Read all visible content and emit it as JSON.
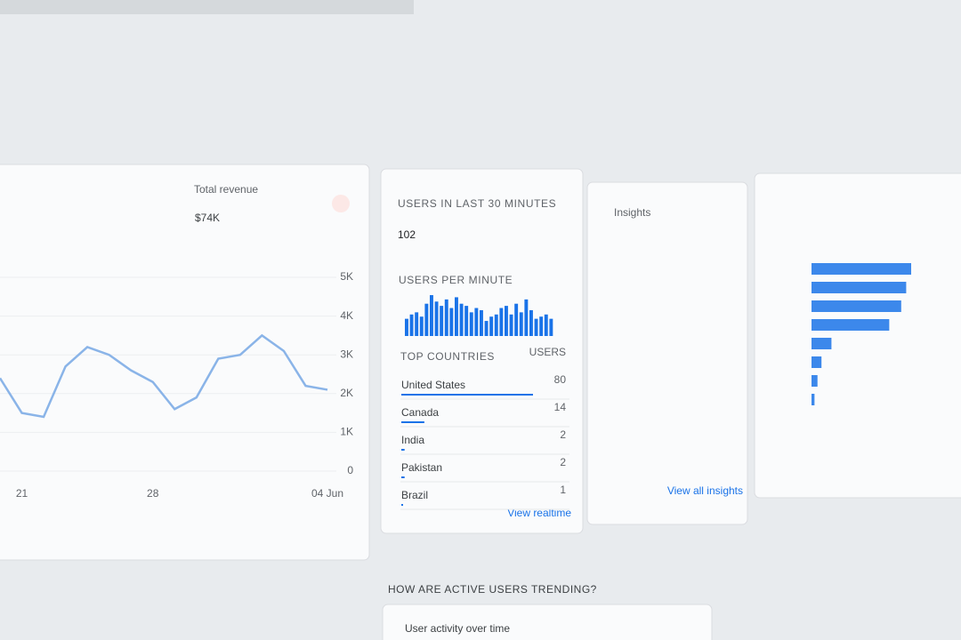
{
  "revenue_card": {
    "label": "Total revenue",
    "value": "$74K"
  },
  "realtime_card": {
    "title": "USERS IN LAST 30 MINUTES",
    "value": "102",
    "per_minute_label": "USERS PER MINUTE",
    "countries_label": "TOP COUNTRIES",
    "users_label": "USERS",
    "countries": [
      {
        "name": "United States",
        "users": 80
      },
      {
        "name": "Canada",
        "users": 14
      },
      {
        "name": "India",
        "users": 2
      },
      {
        "name": "Pakistan",
        "users": 2
      },
      {
        "name": "Brazil",
        "users": 1
      }
    ],
    "link": "View realtime"
  },
  "insights_card": {
    "title": "Insights",
    "link": "View all insights"
  },
  "section": {
    "title": "HOW ARE ACTIVE USERS TRENDING?",
    "card_title": "User activity over time"
  },
  "chart_data": [
    {
      "type": "line",
      "categories": [
        null,
        "21",
        null,
        null,
        null,
        null,
        null,
        "28",
        null,
        null,
        null,
        null,
        null,
        null,
        null,
        "04 Jun"
      ],
      "values": [
        2400,
        1500,
        1400,
        2700,
        3200,
        3000,
        2600,
        2300,
        1600,
        1900,
        2900,
        3000,
        3500,
        3100,
        2200,
        2100
      ],
      "color": "#8ab4e8",
      "ylim": [
        0,
        5000
      ],
      "yticks": [
        0,
        {
          "value": 1000,
          "label": "1K"
        },
        {
          "value": 2000,
          "label": "2K"
        },
        {
          "value": 3000,
          "label": "3K"
        },
        {
          "value": 4000,
          "label": "4K"
        },
        {
          "value": 5000,
          "label": "5K"
        }
      ],
      "grid": true
    },
    {
      "type": "bar",
      "values": [
        16,
        20,
        22,
        18,
        30,
        38,
        32,
        28,
        34,
        26,
        36,
        30,
        28,
        22,
        26,
        24,
        14,
        18,
        20,
        26,
        28,
        20,
        30,
        22,
        34,
        24,
        16,
        18,
        20,
        16
      ],
      "color": "#1a73e8"
    },
    {
      "type": "hbar",
      "categories": [
        null,
        null,
        null,
        null,
        null,
        null,
        null,
        null
      ],
      "values": [
        100,
        95,
        90,
        78,
        20,
        10,
        6,
        3
      ],
      "color": "#1a73e8"
    }
  ]
}
